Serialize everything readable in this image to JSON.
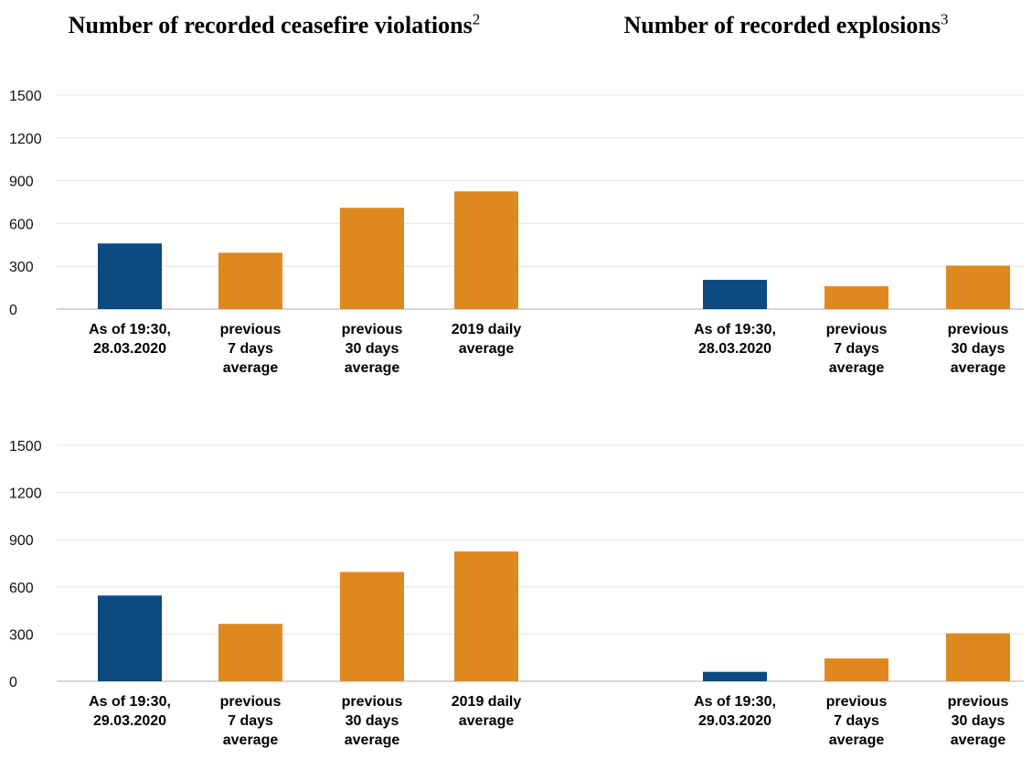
{
  "titles": {
    "ceasefire": "Number of recorded ceasefire violations",
    "ceasefire_note": "2",
    "explosions": "Number of recorded explosions",
    "explosions_note": "3"
  },
  "colors": {
    "current": "#0d4a82",
    "average": "#e08820",
    "grid": "#e4e4e4",
    "axis": "#c8c8c8"
  },
  "y_ticks": [
    0,
    300,
    600,
    900,
    1200,
    1500
  ],
  "chart_data": [
    {
      "type": "bar",
      "title": "Number of recorded ceasefire violations",
      "categories": [
        [
          "As of 19:30,",
          "28.03.2020"
        ],
        [
          "previous",
          "7 days",
          "average"
        ],
        [
          "previous",
          "30 days",
          "average"
        ],
        [
          "2019 daily",
          "average"
        ]
      ],
      "values": [
        460,
        395,
        710,
        825
      ],
      "bar_colors": [
        "current",
        "average",
        "average",
        "average"
      ],
      "ylim": [
        0,
        1500
      ],
      "grid": true
    },
    {
      "type": "bar",
      "title": "Number of recorded explosions",
      "categories": [
        [
          "As of 19:30,",
          "28.03.2020"
        ],
        [
          "previous",
          "7 days",
          "average"
        ],
        [
          "previous",
          "30 days",
          "average"
        ]
      ],
      "values": [
        205,
        160,
        305
      ],
      "bar_colors": [
        "current",
        "average",
        "average"
      ],
      "ylim": [
        0,
        1500
      ],
      "grid": true
    },
    {
      "type": "bar",
      "title": "Number of recorded ceasefire violations",
      "categories": [
        [
          "As of 19:30,",
          "29.03.2020"
        ],
        [
          "previous",
          "7 days",
          "average"
        ],
        [
          "previous",
          "30 days",
          "average"
        ],
        [
          "2019 daily",
          "average"
        ]
      ],
      "values": [
        545,
        365,
        695,
        825
      ],
      "bar_colors": [
        "current",
        "average",
        "average",
        "average"
      ],
      "ylim": [
        0,
        1500
      ],
      "grid": true
    },
    {
      "type": "bar",
      "title": "Number of recorded explosions",
      "categories": [
        [
          "As of 19:30,",
          "29.03.2020"
        ],
        [
          "previous",
          "7 days",
          "average"
        ],
        [
          "previous",
          "30 days",
          "average"
        ]
      ],
      "values": [
        60,
        145,
        305
      ],
      "bar_colors": [
        "current",
        "average",
        "average"
      ],
      "ylim": [
        0,
        1500
      ],
      "grid": true
    }
  ]
}
